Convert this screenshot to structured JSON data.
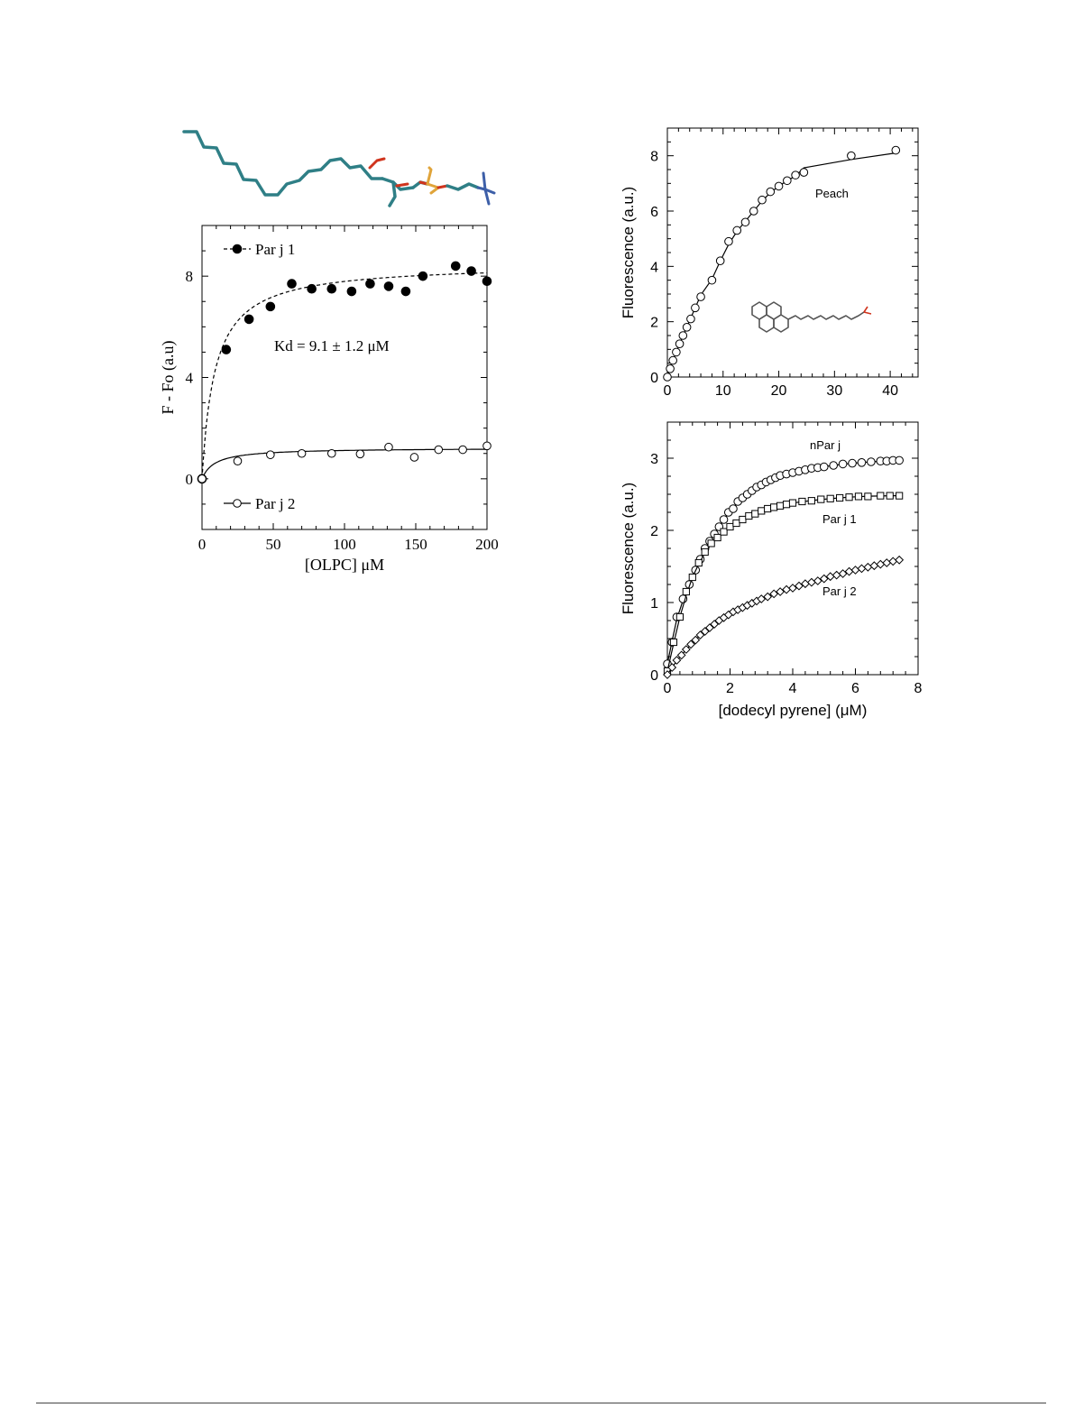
{
  "chart_data": [
    {
      "type": "scatter",
      "xlabel": "[OLPC] μM",
      "ylabel": "F - Fo (a.u)",
      "xlim": [
        0,
        200
      ],
      "ylim": [
        -2,
        10
      ],
      "xticks": [
        0,
        50,
        100,
        150,
        200
      ],
      "yticks": [
        0,
        4,
        8
      ],
      "annotation": "Kd = 9.1 ± 1.2 μM",
      "legend_position": "top-left and bottom-left",
      "grid": false,
      "series": [
        {
          "name": "Par j 1",
          "marker": "filled-circle",
          "fit": "dashed",
          "kd": 9.1,
          "fmax": 8.5,
          "x": [
            0,
            17,
            33,
            48,
            63,
            77,
            91,
            105,
            118,
            131,
            143,
            155,
            178,
            189,
            200
          ],
          "y": [
            0,
            5.1,
            6.3,
            6.8,
            7.7,
            7.5,
            7.5,
            7.4,
            7.7,
            7.6,
            7.4,
            8.0,
            8.4,
            8.2,
            7.8
          ]
        },
        {
          "name": "Par j 2",
          "marker": "open-circle",
          "fit": "solid",
          "kd": 9.1,
          "fmax": 1.22,
          "x": [
            0,
            25,
            48,
            70,
            91,
            111,
            131,
            149,
            166,
            183,
            200
          ],
          "y": [
            0,
            0.7,
            0.95,
            1.0,
            1.0,
            0.98,
            1.25,
            0.85,
            1.15,
            1.15,
            1.3
          ]
        }
      ]
    },
    {
      "type": "scatter",
      "xlabel": "",
      "ylabel": "Fluorescence (a.u.)",
      "xlim": [
        0,
        45
      ],
      "ylim": [
        0,
        9
      ],
      "xticks": [
        0,
        10,
        20,
        30,
        40
      ],
      "yticks": [
        0,
        2,
        4,
        6,
        8
      ],
      "grid": false,
      "series": [
        {
          "name": "Peach",
          "marker": "open-circle",
          "fit": "solid",
          "x": [
            0,
            0.5,
            1,
            1.6,
            2.2,
            2.8,
            3.5,
            4.2,
            5,
            6,
            8,
            9.5,
            11,
            12.5,
            14,
            15.5,
            17,
            18.5,
            20,
            21.5,
            23,
            24.5,
            33,
            41
          ],
          "y": [
            0,
            0.3,
            0.6,
            0.9,
            1.2,
            1.5,
            1.8,
            2.1,
            2.5,
            2.9,
            3.5,
            4.2,
            4.9,
            5.3,
            5.6,
            6.0,
            6.4,
            6.7,
            6.9,
            7.1,
            7.3,
            7.4,
            8.0,
            8.2
          ]
        }
      ]
    },
    {
      "type": "scatter",
      "xlabel": "[dodecyl pyrene] (μM)",
      "ylabel": "Fluorescence (a.u.)",
      "xlim": [
        0,
        8
      ],
      "ylim": [
        0,
        3.5
      ],
      "xticks": [
        0,
        2,
        4,
        6,
        8
      ],
      "yticks": [
        0,
        1,
        2,
        3
      ],
      "grid": false,
      "series": [
        {
          "name": "nPar j",
          "marker": "open-circle",
          "fit": "solid",
          "x": [
            0,
            0.15,
            0.3,
            0.5,
            0.7,
            0.9,
            1.05,
            1.2,
            1.35,
            1.5,
            1.65,
            1.8,
            1.95,
            2.1,
            2.25,
            2.4,
            2.55,
            2.7,
            2.85,
            3.0,
            3.15,
            3.3,
            3.45,
            3.6,
            3.8,
            4.0,
            4.2,
            4.4,
            4.6,
            4.8,
            5.0,
            5.3,
            5.6,
            5.9,
            6.2,
            6.5,
            6.8,
            7.0,
            7.2,
            7.4
          ],
          "y": [
            0.15,
            0.45,
            0.8,
            1.05,
            1.25,
            1.45,
            1.6,
            1.75,
            1.85,
            1.95,
            2.05,
            2.15,
            2.25,
            2.3,
            2.4,
            2.45,
            2.5,
            2.55,
            2.6,
            2.63,
            2.67,
            2.7,
            2.73,
            2.76,
            2.78,
            2.8,
            2.82,
            2.84,
            2.86,
            2.87,
            2.88,
            2.9,
            2.92,
            2.93,
            2.94,
            2.95,
            2.96,
            2.96,
            2.97,
            2.97
          ]
        },
        {
          "name": "Par j 1",
          "marker": "open-square",
          "fit": "solid",
          "x": [
            0,
            0.2,
            0.4,
            0.6,
            0.8,
            1.0,
            1.2,
            1.4,
            1.6,
            1.8,
            2.0,
            2.2,
            2.4,
            2.6,
            2.8,
            3.0,
            3.2,
            3.4,
            3.6,
            3.8,
            4.0,
            4.3,
            4.6,
            4.9,
            5.2,
            5.5,
            5.8,
            6.1,
            6.4,
            6.8,
            7.1,
            7.4
          ],
          "y": [
            0.05,
            0.45,
            0.8,
            1.15,
            1.35,
            1.55,
            1.7,
            1.82,
            1.9,
            1.98,
            2.05,
            2.1,
            2.15,
            2.2,
            2.23,
            2.27,
            2.3,
            2.32,
            2.34,
            2.36,
            2.38,
            2.4,
            2.41,
            2.43,
            2.44,
            2.45,
            2.46,
            2.47,
            2.47,
            2.48,
            2.48,
            2.48
          ]
        },
        {
          "name": "Par j 2",
          "marker": "open-diamond",
          "fit": "solid",
          "x": [
            0,
            0.15,
            0.3,
            0.45,
            0.6,
            0.75,
            0.9,
            1.05,
            1.2,
            1.35,
            1.5,
            1.65,
            1.8,
            1.95,
            2.1,
            2.25,
            2.4,
            2.55,
            2.7,
            2.85,
            3.0,
            3.2,
            3.4,
            3.6,
            3.8,
            4.0,
            4.2,
            4.4,
            4.6,
            4.8,
            5.0,
            5.2,
            5.4,
            5.6,
            5.8,
            6.0,
            6.2,
            6.4,
            6.6,
            6.8,
            7.0,
            7.2,
            7.4
          ],
          "y": [
            0,
            0.1,
            0.2,
            0.27,
            0.35,
            0.42,
            0.48,
            0.55,
            0.6,
            0.65,
            0.7,
            0.75,
            0.79,
            0.83,
            0.87,
            0.9,
            0.93,
            0.96,
            0.99,
            1.02,
            1.05,
            1.08,
            1.12,
            1.15,
            1.18,
            1.2,
            1.23,
            1.26,
            1.28,
            1.3,
            1.33,
            1.36,
            1.38,
            1.4,
            1.43,
            1.45,
            1.47,
            1.49,
            1.51,
            1.53,
            1.55,
            1.57,
            1.59
          ]
        }
      ]
    }
  ],
  "colors": {
    "ink": "#000000",
    "molecule_chain": "#2f7f86",
    "molecule_oxygen": "#d0341d",
    "molecule_phosphate": "#e0a43a",
    "molecule_nitrogen": "#3d5fa8"
  }
}
